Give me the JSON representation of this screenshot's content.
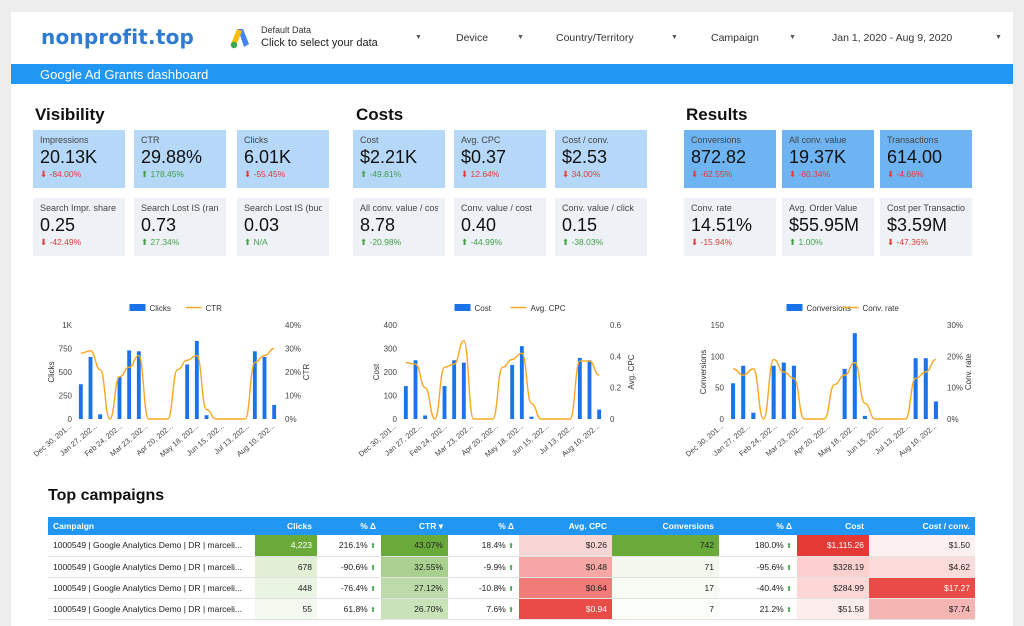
{
  "header": {
    "logo": "nonprofit.top",
    "data_source": {
      "line1": "Default Data",
      "line2": "Click to select your data"
    },
    "filters": [
      {
        "label": "Device"
      },
      {
        "label": "Country/Territory"
      },
      {
        "label": "Campaign"
      },
      {
        "label": "Jan 1, 2020 - Aug 9, 2020"
      }
    ]
  },
  "banner": {
    "title": "Google Ad Grants dashboard"
  },
  "sections": {
    "visibility": "Visibility",
    "costs": "Costs",
    "results": "Results"
  },
  "tiles": [
    {
      "label": "Impressions",
      "value": "20.13K",
      "change": "-84.00%",
      "dir": "neg",
      "style": "blue"
    },
    {
      "label": "CTR",
      "value": "29.88%",
      "change": "178.45%",
      "dir": "pos",
      "style": "blue"
    },
    {
      "label": "Clicks",
      "value": "6.01K",
      "change": "-55.45%",
      "dir": "neg",
      "style": "blue"
    },
    {
      "label": "Search Impr. share",
      "value": "0.25",
      "change": "-42.49%",
      "dir": "neg",
      "style": "grey"
    },
    {
      "label": "Search Lost IS (rank)",
      "value": "0.73",
      "change": "27.34%",
      "dir": "pos",
      "style": "grey"
    },
    {
      "label": "Search Lost IS (budget)",
      "value": "0.03",
      "change": "N/A",
      "dir": "pos",
      "style": "grey"
    },
    {
      "label": "Cost",
      "value": "$2.21K",
      "change": "-49.81%",
      "dir": "pos",
      "style": "blue"
    },
    {
      "label": "Avg. CPC",
      "value": "$0.37",
      "change": "12.64%",
      "dir": "neg",
      "style": "blue"
    },
    {
      "label": "Cost / conv.",
      "value": "$2.53",
      "change": "34.00%",
      "dir": "neg",
      "style": "blue"
    },
    {
      "label": "All conv. value / cost",
      "value": "8.78",
      "change": "-20.98%",
      "dir": "pos",
      "style": "grey"
    },
    {
      "label": "Conv. value / cost",
      "value": "0.40",
      "change": "-44.99%",
      "dir": "pos",
      "style": "grey"
    },
    {
      "label": "Conv. value / click",
      "value": "0.15",
      "change": "-38.03%",
      "dir": "pos",
      "style": "grey"
    },
    {
      "label": "Conversions",
      "value": "872.82",
      "change": "-62.55%",
      "dir": "neg",
      "style": "dblue"
    },
    {
      "label": "All conv. value",
      "value": "19.37K",
      "change": "-60.34%",
      "dir": "neg",
      "style": "dblue"
    },
    {
      "label": "Transactions",
      "value": "614.00",
      "change": "-4.66%",
      "dir": "neg",
      "style": "dblue"
    },
    {
      "label": "Conv. rate",
      "value": "14.51%",
      "change": "-15.94%",
      "dir": "neg",
      "style": "grey"
    },
    {
      "label": "Avg. Order Value",
      "value": "$55.95M",
      "change": "1.00%",
      "dir": "pos",
      "style": "grey"
    },
    {
      "label": "Cost per Transaction",
      "value": "$3.59M",
      "change": "-47.36%",
      "dir": "neg",
      "style": "grey"
    }
  ],
  "chart_data": [
    {
      "type": "bar",
      "series": [
        {
          "name": "Clicks",
          "kind": "bar",
          "axis": "left",
          "color": "#1a73e8",
          "values": [
            370,
            660,
            50,
            0,
            450,
            730,
            720,
            0,
            0,
            0,
            0,
            580,
            830,
            40,
            0,
            0,
            0,
            0,
            720,
            660,
            150
          ]
        },
        {
          "name": "CTR",
          "kind": "line",
          "axis": "right",
          "color": "#f9a825",
          "values": [
            0.28,
            0.29,
            0.21,
            0,
            0.18,
            0.22,
            0.27,
            0,
            0,
            0,
            0.21,
            0.25,
            0.27,
            0.04,
            0,
            0,
            0,
            0,
            0.24,
            0.27,
            0.3
          ]
        }
      ],
      "x_ticks": [
        "Dec 30, 201...",
        "Jan 27, 202...",
        "Feb 24, 202...",
        "Mar 23, 202...",
        "Apr 20, 202...",
        "May 18, 202...",
        "Jun 15, 202...",
        "Jul 13, 202...",
        "Aug 10, 202..."
      ],
      "y_left": {
        "label": "Clicks",
        "ticks": [
          "1K",
          "750",
          "500",
          "250",
          "0"
        ],
        "max": 1000
      },
      "y_right": {
        "label": "CTR",
        "ticks": [
          "40%",
          "30%",
          "20%",
          "10%",
          "0%"
        ],
        "max": 0.4
      }
    },
    {
      "type": "bar",
      "series": [
        {
          "name": "Cost",
          "kind": "bar",
          "axis": "left",
          "color": "#1a73e8",
          "values": [
            140,
            250,
            15,
            0,
            140,
            250,
            240,
            0,
            0,
            0,
            0,
            230,
            310,
            10,
            0,
            0,
            0,
            0,
            260,
            250,
            40
          ]
        },
        {
          "name": "Avg. CPC",
          "kind": "line",
          "axis": "right",
          "color": "#f9a825",
          "values": [
            0.36,
            0.35,
            0.2,
            0,
            0.33,
            0.35,
            0.5,
            0,
            0,
            0,
            0.33,
            0.38,
            0.42,
            0.1,
            0,
            0,
            0,
            0,
            0.37,
            0.37,
            0.28
          ]
        }
      ],
      "x_ticks": [
        "Dec 30, 201...",
        "Jan 27, 202...",
        "Feb 24, 202...",
        "Mar 23, 202...",
        "Apr 20, 202...",
        "May 18, 202...",
        "Jun 15, 202...",
        "Jul 13, 202...",
        "Aug 10, 202..."
      ],
      "y_left": {
        "label": "Cost",
        "ticks": [
          "400",
          "300",
          "200",
          "100",
          "0"
        ],
        "max": 400
      },
      "y_right": {
        "label": "Avg. CPC",
        "ticks": [
          "0.6",
          "0.4",
          "0.2",
          "0"
        ],
        "max": 0.6
      }
    },
    {
      "type": "bar",
      "series": [
        {
          "name": "Conversions",
          "kind": "bar",
          "axis": "left",
          "color": "#1a73e8",
          "values": [
            57,
            85,
            10,
            0,
            85,
            90,
            85,
            0,
            0,
            0,
            0,
            80,
            137,
            5,
            0,
            0,
            0,
            0,
            97,
            97,
            28
          ]
        },
        {
          "name": "Conv. rate",
          "kind": "line",
          "axis": "right",
          "color": "#f9a825",
          "values": [
            0.16,
            0.14,
            0.16,
            0,
            0.19,
            0.15,
            0.13,
            0,
            0,
            0,
            0.11,
            0.14,
            0.18,
            0.05,
            0,
            0,
            0,
            0,
            0.13,
            0.15,
            0.19
          ]
        }
      ],
      "x_ticks": [
        "Dec 30, 201...",
        "Jan 27, 202...",
        "Feb 24, 202...",
        "Mar 23, 202...",
        "Apr 20, 202...",
        "May 18, 202...",
        "Jun 15, 202...",
        "Jul 13, 202...",
        "Aug 10, 202..."
      ],
      "y_left": {
        "label": "Conversions",
        "ticks": [
          "150",
          "100",
          "50",
          "0"
        ],
        "max": 150
      },
      "y_right": {
        "label": "Conv. rate",
        "ticks": [
          "30%",
          "20%",
          "10%",
          "0%"
        ],
        "max": 0.3
      }
    },
    {
      "type": "table",
      "title": "Top campaigns",
      "columns": [
        "Campaign",
        "Clicks",
        "% Δ",
        "CTR ▾",
        "% Δ",
        "Avg. CPC",
        "Conversions",
        "% Δ",
        "Cost",
        "Cost / conv."
      ],
      "rows": [
        {
          "campaign": "1000549 | Google Analytics Demo | DR | marceli...",
          "clicks": "4,223",
          "clicks_chg": "216.1%",
          "clicks_dir": "up",
          "ctr": "43.07%",
          "ctr_chg": "18.4%",
          "ctr_dir": "up",
          "cpc": "$0.26",
          "conv": "742",
          "conv_chg": "180.0%",
          "conv_dir": "up",
          "cost": "$1,115.26",
          "cpconv": "$1.50"
        },
        {
          "campaign": "1000549 | Google Analytics Demo | DR | marceli...",
          "clicks": "678",
          "clicks_chg": "-90.6%",
          "clicks_dir": "up",
          "ctr": "32.55%",
          "ctr_chg": "-9.9%",
          "ctr_dir": "up",
          "cpc": "$0.48",
          "conv": "71",
          "conv_chg": "-95.6%",
          "conv_dir": "up",
          "cost": "$328.19",
          "cpconv": "$4.62"
        },
        {
          "campaign": "1000549 | Google Analytics Demo | DR | marceli...",
          "clicks": "448",
          "clicks_chg": "-76.4%",
          "clicks_dir": "up",
          "ctr": "27.12%",
          "ctr_chg": "-10.8%",
          "ctr_dir": "up",
          "cpc": "$0.64",
          "conv": "17",
          "conv_chg": "-40.4%",
          "conv_dir": "up",
          "cost": "$284.99",
          "cpconv": "$17.27"
        },
        {
          "campaign": "1000549 | Google Analytics Demo | DR | marceli...",
          "clicks": "55",
          "clicks_chg": "61.8%",
          "clicks_dir": "up",
          "ctr": "26.70%",
          "ctr_chg": "7.6%",
          "ctr_dir": "up",
          "cpc": "$0.94",
          "conv": "7",
          "conv_chg": "21.2%",
          "conv_dir": "up",
          "cost": "$51.58",
          "cpconv": "$7.74"
        }
      ]
    }
  ],
  "colors": {
    "accent": "#2196f3",
    "bar": "#1a73e8",
    "line": "#f9a825",
    "neg": "#e53935",
    "pos": "#43a047"
  }
}
